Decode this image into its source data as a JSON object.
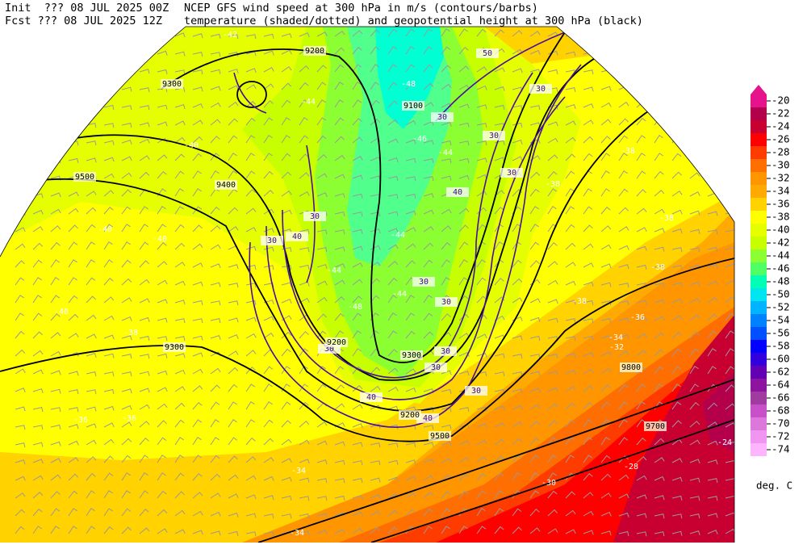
{
  "header": {
    "init": "Init  ??? 08 JUL 2025 00Z",
    "fcst": "Fcst ??? 08 JUL 2025 12Z",
    "title1": "NCEP GFS wind speed at 300 hPa in m/s (contours/barbs)",
    "title2": "temperature (shaded/dotted) and geopotential height at 300 hPa (black)"
  },
  "colorbar": {
    "levels": [
      -20,
      -22,
      -24,
      -26,
      -28,
      -30,
      -32,
      -34,
      -36,
      -38,
      -40,
      -42,
      -44,
      -46,
      -48,
      -50,
      -52,
      -54,
      -56,
      -58,
      -60,
      -62,
      -64,
      -66,
      -68,
      -70,
      -72,
      -74
    ],
    "colors": [
      "#e6148c",
      "#b4004b",
      "#c80032",
      "#ff0000",
      "#ff3c00",
      "#ff6e00",
      "#ff9600",
      "#ffaa00",
      "#ffd200",
      "#ffff00",
      "#e6ff00",
      "#c8ff00",
      "#8cff32",
      "#50ff64",
      "#00ffb4",
      "#00e6f0",
      "#00b4ff",
      "#0082ff",
      "#0050ff",
      "#0000ff",
      "#3200dc",
      "#6400b4",
      "#8c14a0",
      "#a03ca0",
      "#c850c8",
      "#dc78dc",
      "#f096f0",
      "#ffb4ff"
    ],
    "unit": "deg. C"
  },
  "map": {
    "height_labels": [
      9200,
      9300,
      9500,
      9400,
      9100,
      9300,
      9200,
      9300,
      9200,
      9500,
      9800,
      9700
    ],
    "temperature_labels": [
      -42,
      -48,
      -44,
      -40,
      -46,
      -44,
      -38,
      -38,
      -40,
      -40,
      -38,
      -44,
      -40,
      -38,
      -44,
      -48,
      -44,
      -38,
      -38,
      -36,
      -34,
      -32,
      -36,
      -36,
      -34,
      -34,
      -28,
      -30,
      -24
    ],
    "wind_labels": [
      50,
      30,
      30,
      30,
      30,
      40,
      30,
      40,
      30,
      30,
      30,
      30,
      30,
      40,
      30,
      40,
      30
    ]
  }
}
